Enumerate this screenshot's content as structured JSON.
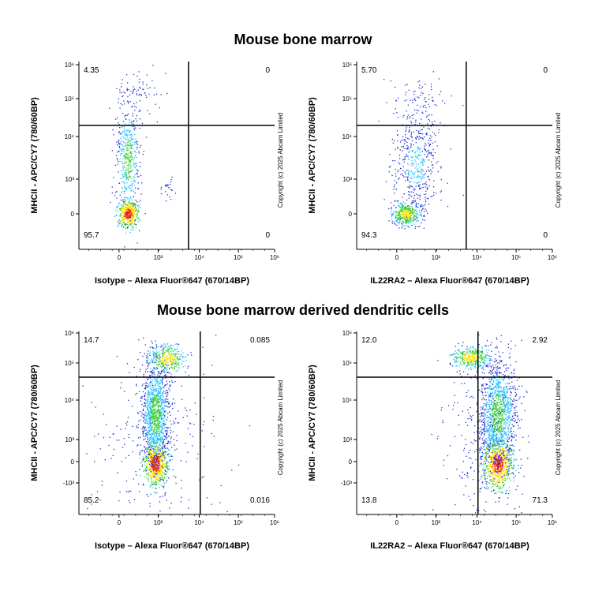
{
  "section_titles": {
    "top": "Mouse bone marrow",
    "bottom": "Mouse bone marrow derived dendritic cells"
  },
  "colors": {
    "density_low": "#1f2fd6",
    "density_mid": "#25c1ff",
    "density_mid2": "#3cd23c",
    "density_high": "#ffe000",
    "density_peak": "#ff3000",
    "gate_line": "#000000"
  },
  "chart_data": [
    {
      "type": "scatter",
      "subtype": "flow-cytometry-density-dot-plot",
      "id": "p1",
      "xlabel": "Isotype – Alexa Fluor®647 (670/14BP)",
      "ylabel": "MHCII - APC/CY7 (780/60BP)",
      "x_ticks": [
        "0",
        "10³",
        "10⁴",
        "10⁵",
        "10⁶"
      ],
      "y_ticks": [
        "0",
        "10³",
        "10⁴",
        "10⁵",
        "10⁶"
      ],
      "x_scale": "biexponential",
      "y_scale": "biexponential",
      "quadrant_gate": {
        "x": 6000,
        "y": 20000
      },
      "quadrants": {
        "upper_left": "4.35",
        "upper_right": "0",
        "lower_left": "95.7",
        "lower_right": "0"
      },
      "copyright": "Copyright (c) 2025 Abcam Limited",
      "populations": [
        {
          "x_center": 200,
          "y_center": 0,
          "density": "dense"
        },
        {
          "x_center": 200,
          "y_center": 3000,
          "density": "medium"
        },
        {
          "x_center": 300,
          "y_center": 50000,
          "density": "sparse"
        }
      ]
    },
    {
      "type": "scatter",
      "subtype": "flow-cytometry-density-dot-plot",
      "id": "p2",
      "xlabel": "IL22RA2 – Alexa Fluor®647 (670/14BP)",
      "ylabel": "MHCII - APC/CY7 (780/60BP)",
      "x_ticks": [
        "0",
        "10³",
        "10⁴",
        "10⁵",
        "10⁶"
      ],
      "y_ticks": [
        "0",
        "10³",
        "10⁴",
        "10⁵",
        "10⁶"
      ],
      "x_scale": "biexponential",
      "y_scale": "biexponential",
      "quadrant_gate": {
        "x": 6000,
        "y": 20000
      },
      "quadrants": {
        "upper_left": "5.70",
        "upper_right": "0",
        "lower_left": "94.3",
        "lower_right": "0"
      },
      "copyright": "Copyright (c) 2025 Abcam Limited",
      "populations": [
        {
          "x_center": 200,
          "y_center": 0,
          "density": "dense"
        },
        {
          "x_center": 250,
          "y_center": 3000,
          "density": "medium"
        },
        {
          "x_center": 300,
          "y_center": 40000,
          "density": "sparse"
        }
      ]
    },
    {
      "type": "scatter",
      "subtype": "flow-cytometry-density-dot-plot",
      "id": "p3",
      "xlabel": "Isotype – Alexa Fluor®647 (670/14BP)",
      "ylabel": "MHCII - APC/CY7 (780/60BP)",
      "x_ticks": [
        "0",
        "10³",
        "10⁴",
        "10⁵",
        "10⁶"
      ],
      "y_ticks": [
        "-10³",
        "0",
        "10³",
        "10⁴",
        "10⁵",
        "10⁶"
      ],
      "x_scale": "biexponential",
      "y_scale": "biexponential",
      "quadrant_gate": {
        "x": 6000,
        "y": 40000
      },
      "quadrants": {
        "upper_left": "14.7",
        "upper_right": "0.085",
        "lower_left": "85.2",
        "lower_right": "0.016"
      },
      "copyright": "Copyright (c) 2025 Abcam Limited",
      "populations": [
        {
          "x_center": 500,
          "y_center": 0,
          "density": "dense"
        },
        {
          "x_center": 500,
          "y_center": 5000,
          "density": "dense"
        },
        {
          "x_center": 700,
          "y_center": 80000,
          "density": "medium"
        }
      ]
    },
    {
      "type": "scatter",
      "subtype": "flow-cytometry-density-dot-plot",
      "id": "p4",
      "xlabel": "IL22RA2 – Alexa Fluor®647 (670/14BP)",
      "ylabel": "MHCII - APC/CY7 (780/60BP)",
      "x_ticks": [
        "0",
        "10³",
        "10⁴",
        "10⁵",
        "10⁶"
      ],
      "y_ticks": [
        "-10³",
        "0",
        "10³",
        "10⁴",
        "10⁵",
        "10⁶"
      ],
      "x_scale": "biexponential",
      "y_scale": "biexponential",
      "quadrant_gate": {
        "x": 6000,
        "y": 40000
      },
      "quadrants": {
        "upper_left": "12.0",
        "upper_right": "2.92",
        "lower_left": "13.8",
        "lower_right": "71.3"
      },
      "copyright": "Copyright (c) 2025 Abcam Limited",
      "populations": [
        {
          "x_center": 10000,
          "y_center": 0,
          "density": "dense"
        },
        {
          "x_center": 10000,
          "y_center": 5000,
          "density": "dense"
        },
        {
          "x_center": 3000,
          "y_center": 100000,
          "density": "medium"
        }
      ]
    }
  ]
}
